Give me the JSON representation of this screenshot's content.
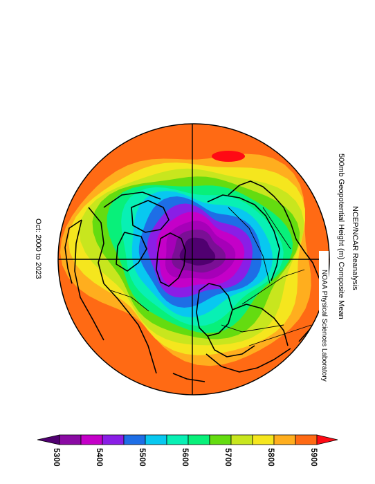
{
  "title": {
    "line1": "NCEP/NCAR Reanalysis",
    "line2": "500mb Geopotential Height (m) Composite Mean",
    "credit": "NOAA Physical Sciences Laboratory"
  },
  "period": "Oct: 2000 to 2023",
  "colorbar": {
    "colors": [
      "#500070",
      "#8a0aa3",
      "#c400c8",
      "#8a1ee6",
      "#1e6ee6",
      "#08c8f0",
      "#08f0b4",
      "#08f07a",
      "#64dc10",
      "#c8e61e",
      "#f5e61e",
      "#ffae1e",
      "#ff6a14",
      "#ff0a14"
    ],
    "labels": [
      "5300",
      "5400",
      "5500",
      "5600",
      "5700",
      "5800",
      "5900"
    ]
  },
  "map": {
    "projection": "north-polar-stereographic",
    "field": "500mb geopotential height",
    "contour_colors_center_out": [
      "#500070",
      "#7a0f95",
      "#a600b8",
      "#c400c8",
      "#8a1ee6",
      "#1e6ee6",
      "#08c8f0",
      "#08f0b4",
      "#08f07a",
      "#64dc10",
      "#c8e61e",
      "#f5e61e",
      "#ffae1e",
      "#ff6a14"
    ],
    "high_spot_color": "#ff0a14"
  }
}
